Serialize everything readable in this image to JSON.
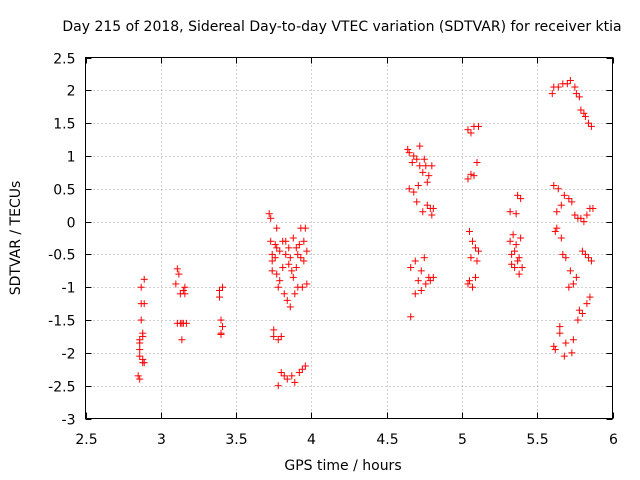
{
  "chart_data": {
    "type": "scatter",
    "title": "Day 215 of 2018, Sidereal Day-to-day VTEC variation (SDTVAR) for receiver ktia",
    "xlabel": "GPS time / hours",
    "ylabel": "SDTVAR / TECUs",
    "xlim": [
      2.5,
      6
    ],
    "ylim": [
      -3,
      2.5
    ],
    "grid": true,
    "marker": "+",
    "color": "#ff0000",
    "xticks": [
      2.5,
      3,
      3.5,
      4,
      4.5,
      5,
      5.5,
      6
    ],
    "xtick_labels": [
      "2.5",
      "3",
      "3.5",
      "4",
      "4.5",
      "5",
      "5.5",
      "6"
    ],
    "yticks": [
      2.5,
      2,
      1.5,
      1,
      0.5,
      0,
      -0.5,
      -1,
      -1.5,
      -2,
      -2.5,
      -3
    ],
    "ytick_labels": [
      "2.5",
      "2",
      "1.5",
      "1",
      "0.5",
      "0",
      "-0.5",
      "-1",
      "-1.5",
      "-2",
      "-2.5",
      "-3"
    ],
    "series": [
      {
        "name": "SDTVAR",
        "points": [
          [
            2.85,
            -2.35
          ],
          [
            2.86,
            -2.4
          ],
          [
            2.86,
            -2.05
          ],
          [
            2.86,
            -1.95
          ],
          [
            2.86,
            -1.85
          ],
          [
            2.86,
            -1.8
          ],
          [
            2.87,
            -1.5
          ],
          [
            2.87,
            -1.25
          ],
          [
            2.87,
            -1.0
          ],
          [
            2.88,
            -2.15
          ],
          [
            2.88,
            -2.1
          ],
          [
            2.88,
            -1.75
          ],
          [
            2.88,
            -1.7
          ],
          [
            2.89,
            -1.25
          ],
          [
            2.89,
            -0.88
          ],
          [
            2.89,
            -2.15
          ],
          [
            3.1,
            -0.95
          ],
          [
            3.11,
            -0.72
          ],
          [
            3.11,
            -1.55
          ],
          [
            3.12,
            -0.8
          ],
          [
            3.13,
            -1.55
          ],
          [
            3.13,
            -1.1
          ],
          [
            3.14,
            -1.8
          ],
          [
            3.14,
            -1.55
          ],
          [
            3.15,
            -1.05
          ],
          [
            3.15,
            -1.55
          ],
          [
            3.16,
            -1.1
          ],
          [
            3.16,
            -1.0
          ],
          [
            3.17,
            -1.55
          ],
          [
            3.39,
            -1.05
          ],
          [
            3.39,
            -1.15
          ],
          [
            3.4,
            -1.5
          ],
          [
            3.4,
            -1.7
          ],
          [
            3.4,
            -1.72
          ],
          [
            3.41,
            -1.0
          ],
          [
            3.41,
            -1.6
          ],
          [
            3.72,
            0.12
          ],
          [
            3.73,
            -0.3
          ],
          [
            3.73,
            0.05
          ],
          [
            3.74,
            -0.5
          ],
          [
            3.74,
            -0.6
          ],
          [
            3.74,
            -0.75
          ],
          [
            3.75,
            -1.65
          ],
          [
            3.75,
            -1.75
          ],
          [
            3.76,
            -0.35
          ],
          [
            3.76,
            -0.55
          ],
          [
            3.77,
            -0.1
          ],
          [
            3.77,
            -0.4
          ],
          [
            3.77,
            -0.8
          ],
          [
            3.78,
            -1.0
          ],
          [
            3.78,
            -1.8
          ],
          [
            3.78,
            -2.5
          ],
          [
            3.79,
            -0.45
          ],
          [
            3.79,
            -0.9
          ],
          [
            3.8,
            -1.75
          ],
          [
            3.8,
            -2.3
          ],
          [
            3.81,
            -0.3
          ],
          [
            3.81,
            -0.7
          ],
          [
            3.82,
            -1.1
          ],
          [
            3.82,
            -2.35
          ],
          [
            3.83,
            -0.3
          ],
          [
            3.83,
            -0.5
          ],
          [
            3.84,
            -2.4
          ],
          [
            3.84,
            -1.2
          ],
          [
            3.85,
            -0.4
          ],
          [
            3.85,
            -0.65
          ],
          [
            3.86,
            -0.55
          ],
          [
            3.86,
            -1.3
          ],
          [
            3.87,
            -2.35
          ],
          [
            3.87,
            -0.75
          ],
          [
            3.88,
            -0.25
          ],
          [
            3.88,
            -0.85
          ],
          [
            3.89,
            -2.45
          ],
          [
            3.89,
            -1.1
          ],
          [
            3.9,
            -0.4
          ],
          [
            3.9,
            -0.7
          ],
          [
            3.91,
            -0.5
          ],
          [
            3.91,
            -1.0
          ],
          [
            3.92,
            -2.3
          ],
          [
            3.92,
            -0.35
          ],
          [
            3.93,
            -0.1
          ],
          [
            3.93,
            -0.55
          ],
          [
            3.94,
            -2.25
          ],
          [
            3.94,
            -1.0
          ],
          [
            3.95,
            -0.3
          ],
          [
            3.95,
            -0.6
          ],
          [
            3.96,
            -2.2
          ],
          [
            3.96,
            -0.1
          ],
          [
            3.97,
            -0.95
          ],
          [
            3.97,
            -0.45
          ],
          [
            4.64,
            1.1
          ],
          [
            4.65,
            1.05
          ],
          [
            4.65,
            0.5
          ],
          [
            4.66,
            -0.7
          ],
          [
            4.66,
            -1.45
          ],
          [
            4.67,
            0.9
          ],
          [
            4.68,
            1.0
          ],
          [
            4.68,
            0.45
          ],
          [
            4.69,
            -0.6
          ],
          [
            4.69,
            -1.1
          ],
          [
            4.7,
            0.3
          ],
          [
            4.7,
            0.95
          ],
          [
            4.71,
            0.55
          ],
          [
            4.71,
            -0.9
          ],
          [
            4.72,
            1.15
          ],
          [
            4.72,
            0.85
          ],
          [
            4.73,
            -0.75
          ],
          [
            4.73,
            -1.05
          ],
          [
            4.74,
            0.75
          ],
          [
            4.74,
            0.15
          ],
          [
            4.75,
            0.95
          ],
          [
            4.75,
            -0.55
          ],
          [
            4.76,
            0.85
          ],
          [
            4.76,
            -0.95
          ],
          [
            4.77,
            0.6
          ],
          [
            4.77,
            0.25
          ],
          [
            4.78,
            -0.85
          ],
          [
            4.78,
            0.7
          ],
          [
            4.79,
            0.2
          ],
          [
            4.79,
            -0.9
          ],
          [
            4.8,
            0.85
          ],
          [
            4.8,
            0.1
          ],
          [
            4.81,
            -0.85
          ],
          [
            4.81,
            0.2
          ],
          [
            5.04,
            1.4
          ],
          [
            5.04,
            0.65
          ],
          [
            5.04,
            -0.95
          ],
          [
            5.05,
            -0.9
          ],
          [
            5.05,
            -0.15
          ],
          [
            5.06,
            1.35
          ],
          [
            5.06,
            0.72
          ],
          [
            5.06,
            -0.55
          ],
          [
            5.07,
            -1.0
          ],
          [
            5.07,
            -0.3
          ],
          [
            5.08,
            1.45
          ],
          [
            5.08,
            0.7
          ],
          [
            5.09,
            -0.4
          ],
          [
            5.09,
            -0.85
          ],
          [
            5.1,
            0.9
          ],
          [
            5.1,
            -0.6
          ],
          [
            5.11,
            1.45
          ],
          [
            5.11,
            -0.45
          ],
          [
            5.32,
            0.15
          ],
          [
            5.32,
            -0.3
          ],
          [
            5.33,
            -0.5
          ],
          [
            5.33,
            -0.65
          ],
          [
            5.34,
            -0.2
          ],
          [
            5.35,
            -0.45
          ],
          [
            5.35,
            -0.7
          ],
          [
            5.36,
            0.12
          ],
          [
            5.36,
            -0.35
          ],
          [
            5.37,
            0.4
          ],
          [
            5.37,
            -0.6
          ],
          [
            5.38,
            -0.55
          ],
          [
            5.38,
            -0.8
          ],
          [
            5.39,
            0.35
          ],
          [
            5.39,
            -0.25
          ],
          [
            5.4,
            -0.7
          ],
          [
            5.6,
            1.95
          ],
          [
            5.61,
            2.05
          ],
          [
            5.61,
            0.55
          ],
          [
            5.61,
            -1.9
          ],
          [
            5.62,
            -1.95
          ],
          [
            5.62,
            -0.15
          ],
          [
            5.63,
            -0.1
          ],
          [
            5.63,
            0.15
          ],
          [
            5.64,
            2.05
          ],
          [
            5.64,
            0.5
          ],
          [
            5.65,
            -1.6
          ],
          [
            5.65,
            -1.7
          ],
          [
            5.66,
            0.25
          ],
          [
            5.66,
            -0.25
          ],
          [
            5.67,
            2.1
          ],
          [
            5.67,
            -0.5
          ],
          [
            5.68,
            -2.05
          ],
          [
            5.68,
            0.4
          ],
          [
            5.69,
            -1.85
          ],
          [
            5.69,
            -0.55
          ],
          [
            5.7,
            2.1
          ],
          [
            5.71,
            0.35
          ],
          [
            5.71,
            -1.0
          ],
          [
            5.72,
            2.15
          ],
          [
            5.72,
            -0.75
          ],
          [
            5.73,
            -2.0
          ],
          [
            5.73,
            0.3
          ],
          [
            5.74,
            -0.95
          ],
          [
            5.74,
            -1.8
          ],
          [
            5.75,
            2.05
          ],
          [
            5.75,
            0.1
          ],
          [
            5.76,
            1.95
          ],
          [
            5.76,
            -0.85
          ],
          [
            5.77,
            -1.5
          ],
          [
            5.77,
            0.05
          ],
          [
            5.78,
            1.9
          ],
          [
            5.78,
            -1.35
          ],
          [
            5.79,
            1.7
          ],
          [
            5.79,
            0.05
          ],
          [
            5.8,
            -0.45
          ],
          [
            5.8,
            -1.4
          ],
          [
            5.81,
            1.65
          ],
          [
            5.81,
            0.0
          ],
          [
            5.82,
            1.6
          ],
          [
            5.82,
            -0.5
          ],
          [
            5.83,
            -1.25
          ],
          [
            5.83,
            0.1
          ],
          [
            5.84,
            1.5
          ],
          [
            5.84,
            -0.55
          ],
          [
            5.85,
            -1.15
          ],
          [
            5.85,
            0.2
          ],
          [
            5.86,
            1.45
          ],
          [
            5.86,
            -0.6
          ],
          [
            5.87,
            0.2
          ]
        ]
      }
    ]
  }
}
